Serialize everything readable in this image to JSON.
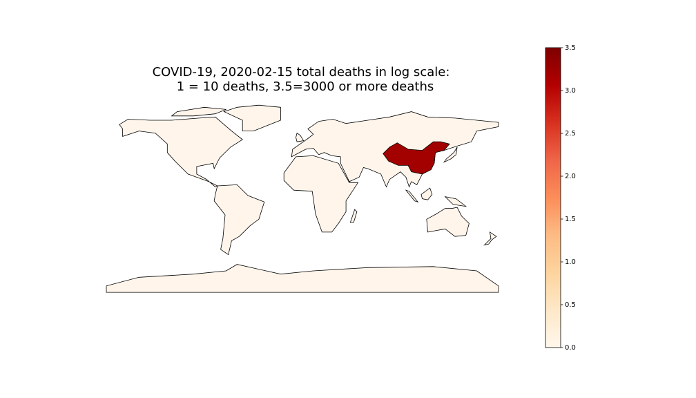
{
  "chart_data": {
    "type": "choropleth",
    "title_lines": [
      "COVID-19, 2020-02-15 total deaths in log scale:",
      "1 = 10 deaths,  3.5=3000 or more deaths"
    ],
    "values": [
      3.2
    ],
    "colormap": [
      "#fff7ec",
      "#fee8c8",
      "#fdd49e",
      "#fdbb84",
      "#fc8d59",
      "#ef6548",
      "#d7301f",
      "#b30000",
      "#7f0000"
    ],
    "base_fill": "#fff5eb",
    "clim": [
      0,
      3.5
    ],
    "cticks": [
      {
        "value": 0,
        "label": "0.0"
      },
      0.5,
      {
        "value": 1,
        "label": "1.0"
      },
      1.5,
      {
        "value": 2,
        "label": "2.0"
      },
      2.5,
      {
        "value": 3,
        "label": "3.0"
      },
      3.5
    ]
  }
}
